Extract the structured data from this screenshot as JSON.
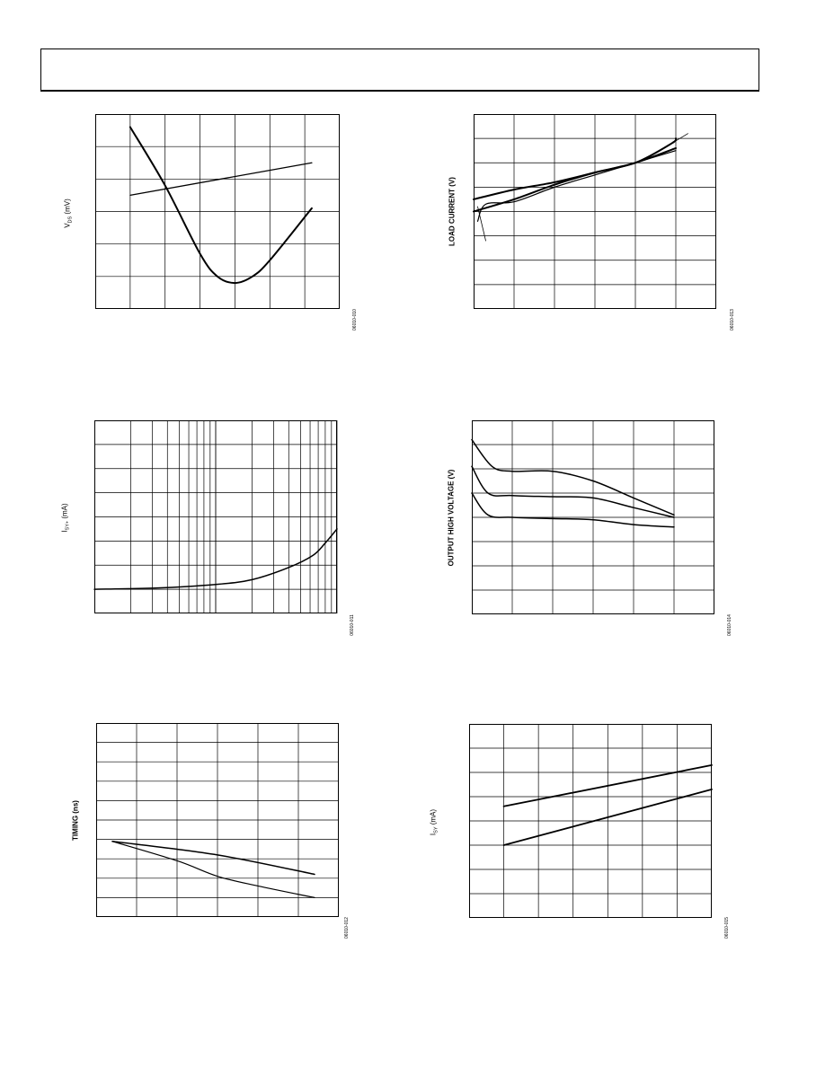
{
  "page": {
    "header_title": ""
  },
  "chart_data": [
    {
      "id": "p10",
      "type": "line",
      "ylabel_main": "V",
      "ylabel_sub": "DS",
      "ylabel_unit": " (mV)",
      "figure_id": "06010-010",
      "grid": true,
      "x_divisions": 7,
      "y_divisions": 6,
      "xlim": [
        0,
        7
      ],
      "ylim": [
        0,
        6
      ],
      "series": [
        {
          "points": [
            [
              1,
              5.6
            ],
            [
              2,
              3.8
            ],
            [
              3,
              1.7
            ],
            [
              3.5,
              1.0
            ],
            [
              4,
              0.8
            ],
            [
              4.5,
              1.0
            ],
            [
              5,
              1.5
            ],
            [
              6.2,
              3.1
            ]
          ],
          "stroke": 2
        },
        {
          "points": [
            [
              1,
              3.5
            ],
            [
              6.2,
              4.5
            ]
          ],
          "stroke": 1.3
        }
      ]
    },
    {
      "id": "p13",
      "type": "line",
      "ylabel_main": "LOAD CURRENT  (V)",
      "figure_id": "06010-013",
      "grid": true,
      "x_divisions": 6,
      "y_divisions": 8,
      "xlim": [
        0,
        6
      ],
      "ylim": [
        0,
        8
      ],
      "series": [
        {
          "points": [
            [
              0,
              4.5
            ],
            [
              1,
              4.9
            ],
            [
              2,
              5.2
            ],
            [
              3,
              5.6
            ],
            [
              4,
              6.0
            ],
            [
              5,
              6.6
            ]
          ],
          "stroke": 2
        },
        {
          "points": [
            [
              0,
              4.0
            ],
            [
              1,
              4.5
            ],
            [
              2,
              5.1
            ],
            [
              3,
              5.6
            ],
            [
              4,
              6.0
            ],
            [
              4.9,
              6.8
            ],
            [
              5,
              7.0
            ]
          ],
          "stroke": 2
        },
        {
          "points": [
            [
              0.1,
              3.6
            ],
            [
              0.3,
              4.3
            ],
            [
              1,
              4.4
            ],
            [
              2,
              5.0
            ],
            [
              3,
              5.5
            ],
            [
              4,
              6.0
            ],
            [
              5,
              6.5
            ]
          ],
          "stroke": 1.2
        },
        {
          "points": [
            [
              0.3,
              2.8
            ],
            [
              0.1,
              4.2
            ]
          ],
          "stroke": 0.8
        },
        {
          "points": [
            [
              5.3,
              7.2
            ],
            [
              4.9,
              6.8
            ]
          ],
          "stroke": 0.8
        }
      ]
    },
    {
      "id": "p11",
      "type": "line",
      "ylabel_main": "I",
      "ylabel_sub": "SY+",
      "ylabel_unit": "  (mA)",
      "figure_id": "06010-011",
      "grid": true,
      "x_scale": "log",
      "x_decades": 2,
      "y_divisions": 8,
      "xlim": [
        0,
        2
      ],
      "ylim": [
        0,
        8
      ],
      "series": [
        {
          "points": [
            [
              0,
              1.0
            ],
            [
              0.5,
              1.05
            ],
            [
              1,
              1.2
            ],
            [
              1.3,
              1.4
            ],
            [
              1.6,
              1.9
            ],
            [
              1.8,
              2.4
            ],
            [
              1.9,
              2.9
            ],
            [
              2,
              3.5
            ]
          ],
          "stroke": 1.5
        }
      ]
    },
    {
      "id": "p14",
      "type": "line",
      "ylabel_main": "OUTPUT HIGH VOLTAGE (V)",
      "figure_id": "06010-014",
      "grid": true,
      "x_divisions": 6,
      "y_divisions": 8,
      "xlim": [
        0,
        6
      ],
      "ylim": [
        0,
        8
      ],
      "series": [
        {
          "points": [
            [
              0,
              7.2
            ],
            [
              0.5,
              6.1
            ],
            [
              1,
              5.9
            ],
            [
              2,
              5.9
            ],
            [
              3,
              5.5
            ],
            [
              4,
              4.8
            ],
            [
              5,
              4.1
            ]
          ],
          "stroke": 1.5
        },
        {
          "points": [
            [
              0,
              6.1
            ],
            [
              0.4,
              5.0
            ],
            [
              1,
              4.9
            ],
            [
              2,
              4.85
            ],
            [
              3,
              4.8
            ],
            [
              4,
              4.4
            ],
            [
              5,
              4.0
            ]
          ],
          "stroke": 1.5
        },
        {
          "points": [
            [
              0,
              5.0
            ],
            [
              0.4,
              4.1
            ],
            [
              1,
              4.0
            ],
            [
              2,
              3.95
            ],
            [
              3,
              3.9
            ],
            [
              4,
              3.7
            ],
            [
              5,
              3.6
            ]
          ],
          "stroke": 1.5
        }
      ]
    },
    {
      "id": "p12",
      "type": "line",
      "ylabel_main": "TIMING (ns)",
      "figure_id": "06010-012",
      "grid": true,
      "x_divisions": 6,
      "y_divisions": 10,
      "xlim": [
        0,
        6
      ],
      "ylim": [
        0,
        10
      ],
      "series": [
        {
          "points": [
            [
              0.4,
              3.9
            ],
            [
              3,
              3.2
            ],
            [
              5.4,
              2.2
            ]
          ],
          "stroke": 1.5
        },
        {
          "points": [
            [
              0.4,
              3.9
            ],
            [
              2,
              2.9
            ],
            [
              3,
              2.1
            ],
            [
              4,
              1.6
            ],
            [
              5.4,
              1.0
            ]
          ],
          "stroke": 1.2
        }
      ]
    },
    {
      "id": "p15",
      "type": "line",
      "ylabel_main": "I",
      "ylabel_sub": "SY",
      "ylabel_unit": "  (mA)",
      "figure_id": "06010-015",
      "grid": true,
      "x_divisions": 7,
      "y_divisions": 8,
      "xlim": [
        0,
        7
      ],
      "ylim": [
        0,
        8
      ],
      "series": [
        {
          "points": [
            [
              1,
              4.6
            ],
            [
              7,
              6.3
            ]
          ],
          "stroke": 1.8
        },
        {
          "points": [
            [
              1,
              3.0
            ],
            [
              7,
              5.3
            ]
          ],
          "stroke": 1.8
        }
      ]
    }
  ]
}
